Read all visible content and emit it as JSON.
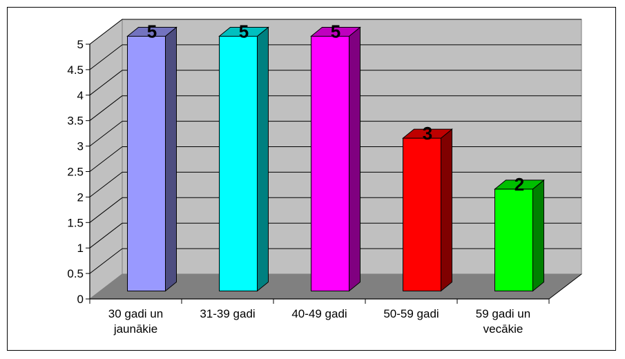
{
  "chart_data": {
    "type": "bar",
    "style": "3d-column",
    "categories": [
      [
        "30 gadi un",
        "jaunākie"
      ],
      [
        "31-39 gadi"
      ],
      [
        "40-49 gadi"
      ],
      [
        "50-59 gadi"
      ],
      [
        "59 gadi un",
        "vecākie"
      ]
    ],
    "values": [
      5,
      5,
      5,
      3,
      2
    ],
    "data_labels": [
      "5",
      "5",
      "5",
      "3",
      "2"
    ],
    "bar_colors": [
      "#9999FF",
      "#00FFFF",
      "#FF00FF",
      "#FF0000",
      "#00FF00"
    ],
    "y_ticks": [
      "0",
      "0.5",
      "1",
      "1.5",
      "2",
      "2.5",
      "3",
      "3.5",
      "4",
      "4.5",
      "5"
    ],
    "ylim": [
      0,
      5
    ],
    "grid": true,
    "wall_color": "#C0C0C0",
    "floor_color": "#808080",
    "title": "",
    "xlabel": "",
    "ylabel": ""
  }
}
